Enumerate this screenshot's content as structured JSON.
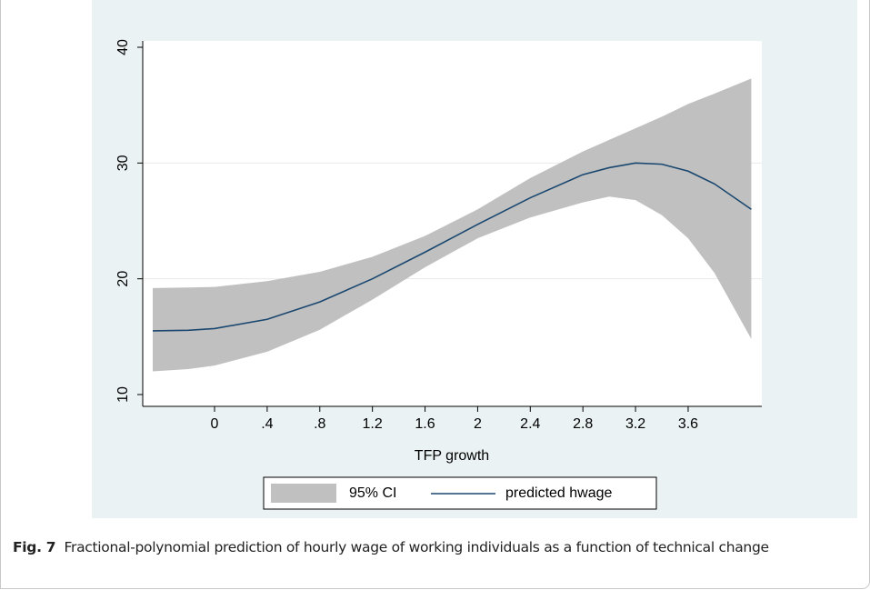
{
  "chart_data": {
    "type": "line",
    "x_label": "TFP growth",
    "x": [
      -0.47,
      -0.2,
      0,
      0.4,
      0.8,
      1.2,
      1.6,
      2.0,
      2.4,
      2.8,
      3.0,
      3.2,
      3.4,
      3.6,
      3.8,
      4.08
    ],
    "series": [
      {
        "name": "95% CI",
        "color": "#c0c0c0",
        "lower": [
          12.0,
          12.2,
          12.5,
          13.7,
          15.6,
          18.2,
          21.0,
          23.5,
          25.3,
          26.6,
          27.1,
          26.8,
          25.5,
          23.5,
          20.5,
          14.8
        ],
        "upper": [
          19.2,
          19.25,
          19.3,
          19.8,
          20.6,
          21.9,
          23.7,
          26.0,
          28.7,
          31.0,
          32.0,
          33.0,
          34.0,
          35.1,
          36.0,
          37.3
        ]
      },
      {
        "name": "predicted hwage",
        "color": "#1a476f",
        "values": [
          15.5,
          15.55,
          15.7,
          16.5,
          18.0,
          20.0,
          22.3,
          24.7,
          27.0,
          29.0,
          29.6,
          30.0,
          29.9,
          29.3,
          28.2,
          26.0
        ]
      }
    ],
    "xlim": [
      -0.546,
      4.16
    ],
    "xticks": [
      0,
      {
        "value": 0.4,
        "label": ".4"
      },
      {
        "value": 0.8,
        "label": ".8"
      },
      1.2,
      1.6,
      2,
      2.4,
      2.8,
      3.2,
      3.6
    ],
    "ylim": [
      8.98,
      40.55
    ],
    "yticks": [
      10,
      20,
      30,
      40
    ],
    "grid": true
  },
  "caption": {
    "label": "Fig. 7",
    "text": "Fractional-polynomial prediction of hourly wage of working individuals as a function of technical change"
  }
}
